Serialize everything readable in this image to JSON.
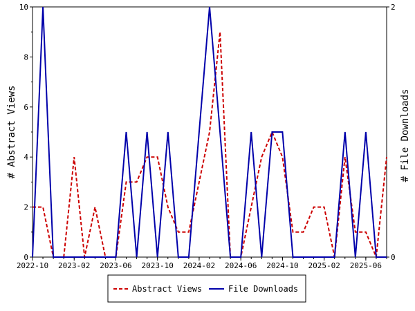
{
  "chart_data": {
    "type": "line",
    "x": [
      "2022-10",
      "2022-11",
      "2022-12",
      "2023-01",
      "2023-02",
      "2023-03",
      "2023-04",
      "2023-05",
      "2023-06",
      "2023-07",
      "2023-08",
      "2023-09",
      "2023-10",
      "2023-11",
      "2023-12",
      "2024-01",
      "2024-02",
      "2024-03",
      "2024-04",
      "2024-05",
      "2024-06",
      "2024-07",
      "2024-08",
      "2024-09",
      "2024-10",
      "2024-11",
      "2024-12",
      "2025-01",
      "2025-02",
      "2025-03",
      "2025-04",
      "2025-05",
      "2025-06",
      "2025-07",
      "2025-08"
    ],
    "x_tick_labels": [
      "2022-10",
      "2023-02",
      "2023-06",
      "2023-10",
      "2024-02",
      "2024-06",
      "2024-10",
      "2025-02",
      "2025-06"
    ],
    "series": [
      {
        "name": "Abstract Views",
        "axis": "left",
        "color": "#cc0000",
        "dash": "dashed",
        "values": [
          2,
          2,
          0,
          0,
          4,
          0,
          2,
          0,
          0,
          3,
          3,
          4,
          4,
          2,
          1,
          1,
          3,
          5,
          9,
          0,
          0,
          2,
          4,
          5,
          4,
          1,
          1,
          2,
          2,
          0,
          4,
          1,
          1,
          0,
          4
        ]
      },
      {
        "name": "File Downloads",
        "axis": "right",
        "color": "#0000aa",
        "dash": "solid",
        "values": [
          0,
          2,
          0,
          0,
          0,
          0,
          0,
          0,
          0,
          1,
          0,
          1,
          0,
          1,
          0,
          0,
          1,
          2,
          1,
          0,
          0,
          1,
          0,
          1,
          1,
          0,
          0,
          0,
          0,
          0,
          1,
          0,
          1,
          0,
          0
        ]
      }
    ],
    "ylabel": "# Abstract Views",
    "ylabel_right": "# File Downloads",
    "ylim": [
      0,
      10
    ],
    "ylim_right": [
      0,
      2
    ],
    "yticks": [
      "0",
      "2",
      "4",
      "6",
      "8",
      "10"
    ],
    "yticks_right": [
      "0",
      "2"
    ],
    "grid": false,
    "legend_position": "bottom"
  },
  "legend": {
    "abstract_label": "Abstract Views",
    "downloads_label": "File Downloads"
  }
}
